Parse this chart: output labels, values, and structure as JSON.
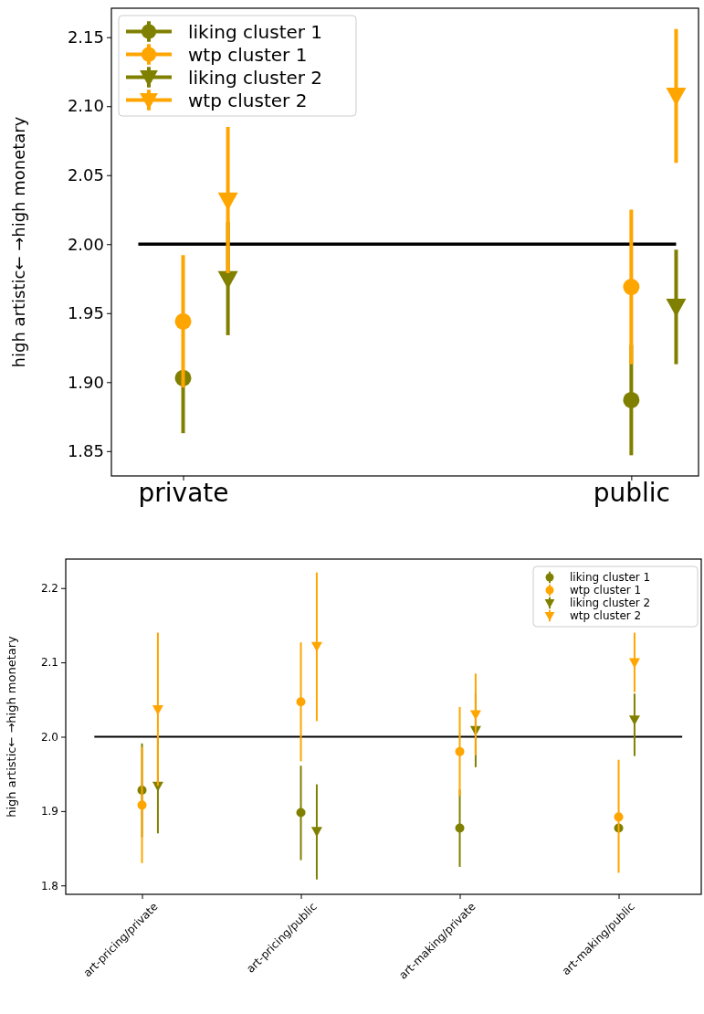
{
  "chart_data": [
    {
      "type": "scatter",
      "ylabel": "high artistic← →high monetary",
      "categories": [
        "private",
        "public"
      ],
      "ylim": [
        1.832,
        2.171
      ],
      "yticks": [
        {
          "value": 1.85,
          "label": "1.85"
        },
        {
          "value": 1.9,
          "label": "1.90"
        },
        {
          "value": 1.95,
          "label": "1.95"
        },
        {
          "value": 2.0,
          "label": "2.00"
        },
        {
          "value": 2.05,
          "label": "2.05"
        },
        {
          "value": 2.1,
          "label": "2.10"
        },
        {
          "value": 2.15,
          "label": "2.15"
        }
      ],
      "legend": "top left",
      "grid": false,
      "ref_lines": [
        {
          "axis": "y",
          "value": 2.0,
          "color": "#000000"
        }
      ],
      "series": [
        {
          "name": "liking cluster 1",
          "color": "#808000",
          "marker": "circle",
          "values": [
            1.903,
            1.887
          ],
          "errors": [
            [
              1.863,
              1.903
            ],
            [
              1.847,
              1.927
            ]
          ]
        },
        {
          "name": "wtp cluster 1",
          "color": "#ffa500",
          "marker": "circle",
          "values": [
            1.944,
            1.969
          ],
          "errors": [
            [
              1.896,
              1.992
            ],
            [
              1.913,
              2.025
            ]
          ]
        },
        {
          "name": "liking cluster 2",
          "color": "#808000",
          "marker": "triangle",
          "values": [
            1.975,
            1.955
          ],
          "errors": [
            [
              1.934,
              2.016
            ],
            [
              1.913,
              1.996
            ]
          ]
        },
        {
          "name": "wtp cluster 2",
          "color": "#ffa500",
          "marker": "triangle",
          "values": [
            2.032,
            2.108
          ],
          "errors": [
            [
              1.979,
              2.085
            ],
            [
              2.059,
              2.156
            ]
          ]
        }
      ]
    },
    {
      "type": "scatter",
      "ylabel": "high artistic← →high monetary",
      "ylim": [
        1.788,
        2.239
      ],
      "categories": [
        "art-pricing/private",
        "art-pricing/public",
        "art-making/private",
        "art-making/public"
      ],
      "yticks": [
        {
          "value": 1.8,
          "label": "1.8"
        },
        {
          "value": 1.9,
          "label": "1.9"
        },
        {
          "value": 2.0,
          "label": "2.0"
        },
        {
          "value": 2.1,
          "label": "2.1"
        },
        {
          "value": 2.2,
          "label": "2.2"
        }
      ],
      "legend": "top right",
      "grid": false,
      "ref_lines": [
        {
          "axis": "y",
          "value": 2.0,
          "color": "#000000"
        }
      ],
      "series": [
        {
          "name": "liking cluster 1",
          "color": "#808000",
          "marker": "circle",
          "values": [
            1.928,
            1.898,
            1.877,
            1.877
          ],
          "errors": [
            [
              1.865,
              1.991
            ],
            [
              1.834,
              1.961
            ],
            [
              1.825,
              1.929
            ],
            null
          ]
        },
        {
          "name": "wtp cluster 1",
          "color": "#ffa500",
          "marker": "circle",
          "values": [
            1.908,
            2.047,
            1.98,
            1.892
          ],
          "errors": [
            [
              1.83,
              1.986
            ],
            [
              1.967,
              2.127
            ],
            [
              1.92,
              2.04
            ],
            [
              1.817,
              1.969
            ]
          ]
        },
        {
          "name": "liking cluster 2",
          "color": "#808000",
          "marker": "triangle",
          "values": [
            1.934,
            1.873,
            2.009,
            2.023
          ],
          "errors": [
            [
              1.87,
              1.998
            ],
            [
              1.808,
              1.936
            ],
            [
              1.959,
              2.059
            ],
            [
              1.974,
              2.058
            ]
          ]
        },
        {
          "name": "wtp cluster 2",
          "color": "#ffa500",
          "marker": "triangle",
          "values": [
            2.037,
            2.122,
            2.03,
            2.1
          ],
          "errors": [
            [
              1.934,
              2.14
            ],
            [
              2.021,
              2.221
            ],
            [
              1.975,
              2.085
            ],
            [
              2.06,
              2.14
            ]
          ]
        }
      ]
    }
  ]
}
